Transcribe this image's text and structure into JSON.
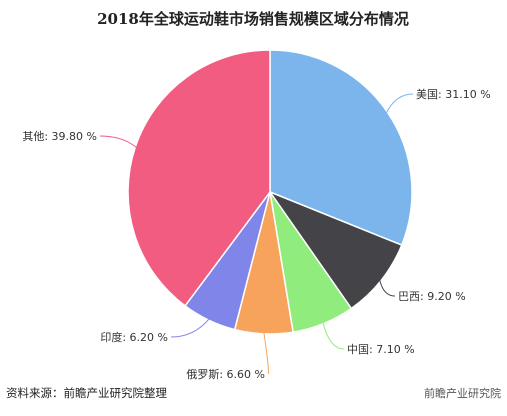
{
  "chart_data": {
    "type": "pie",
    "title": "2018年全球运动鞋市场销售规模区域分布情况",
    "slices": [
      {
        "label": "美国",
        "value": 31.1,
        "display": "美国: 31.10 %",
        "color": "#7cb5ec"
      },
      {
        "label": "巴西",
        "value": 9.2,
        "display": "巴西: 9.20 %",
        "color": "#434348"
      },
      {
        "label": "中国",
        "value": 7.1,
        "display": "中国: 7.10 %",
        "color": "#90ed7d"
      },
      {
        "label": "俄罗斯",
        "value": 6.6,
        "display": "俄罗斯: 6.60 %",
        "color": "#f7a35c"
      },
      {
        "label": "印度",
        "value": 6.2,
        "display": "印度: 6.20 %",
        "color": "#8085e9"
      },
      {
        "label": "其他",
        "value": 39.8,
        "display": "其他: 39.80 %",
        "color": "#f15c80"
      }
    ]
  },
  "footer": {
    "source": "资料来源：前瞻产业研究院整理",
    "watermark": "前瞻产业研究院"
  }
}
